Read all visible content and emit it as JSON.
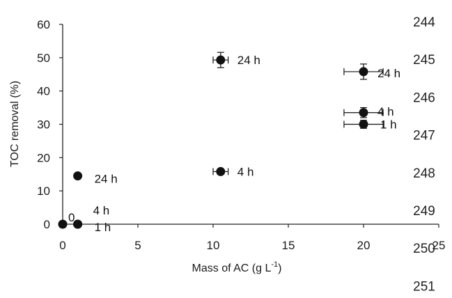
{
  "chart_data": {
    "type": "scatter",
    "title": "",
    "xlabel": "Mass of AC (g L",
    "xlabel_sup": "-1",
    "xlabel_tail": ")",
    "ylabel": "TOC  removal (%)",
    "xlim": [
      0,
      25
    ],
    "ylim": [
      0,
      60
    ],
    "xticks": [
      "0",
      "5",
      "10",
      "15",
      "20",
      "25"
    ],
    "yticks": [
      "0",
      "10",
      "20",
      "30",
      "40",
      "50",
      "60"
    ],
    "grid": false,
    "legend": "none",
    "marker_color": "#111111",
    "points": [
      {
        "x": 0,
        "y": 0,
        "xerr": 0,
        "yerr": 0,
        "label": "0"
      },
      {
        "x": 1,
        "y": 0,
        "xerr": 0,
        "yerr": 0,
        "label": "1 h"
      },
      {
        "x": 1,
        "y": 0,
        "xerr": 0,
        "yerr": 0,
        "label": "4 h"
      },
      {
        "x": 1,
        "y": 14.5,
        "xerr": 0,
        "yerr": 0,
        "label": "24 h"
      },
      {
        "x": 10.5,
        "y": 15.8,
        "xerr": 0.5,
        "yerr": 0.5,
        "label": "4 h"
      },
      {
        "x": 10.5,
        "y": 49.3,
        "xerr": 0.5,
        "yerr": 2.3,
        "label": "24 h"
      },
      {
        "x": 20,
        "y": 30,
        "xerr": 1.3,
        "yerr": 1.2,
        "label": "1 h"
      },
      {
        "x": 20,
        "y": 33.5,
        "xerr": 1.3,
        "yerr": 1.5,
        "label": "4 h"
      },
      {
        "x": 20,
        "y": 45.8,
        "xerr": 1.3,
        "yerr": 2.3,
        "label": "24 h"
      }
    ]
  },
  "line_numbers": [
    "244",
    "245",
    "246",
    "247",
    "248",
    "249",
    "250",
    "251"
  ]
}
